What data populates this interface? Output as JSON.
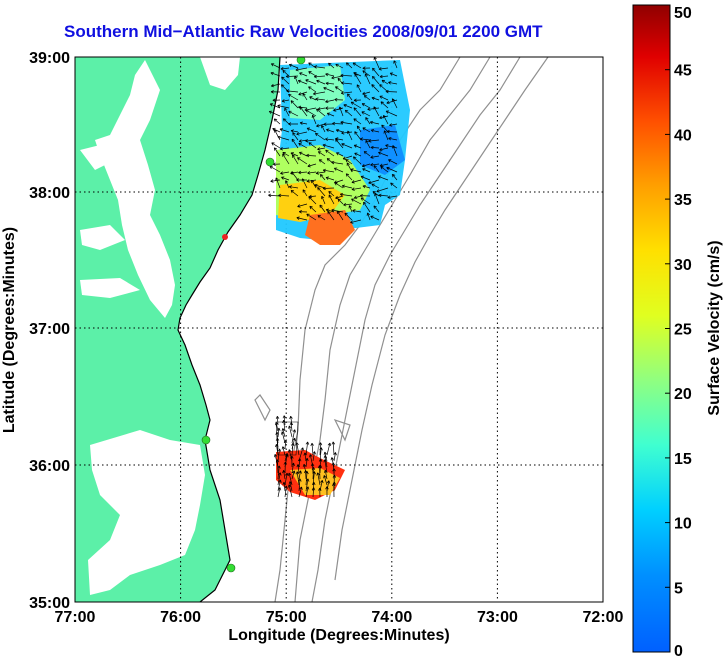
{
  "title": "Southern Mid−Atlantic Raw Velocities 2008/09/01 2200 GMT",
  "map": {
    "x_label": "Longitude (Degrees:Minutes)",
    "y_label": "Latitude (Degrees:Minutes)",
    "x_ticks": [
      "77:00",
      "76:00",
      "75:00",
      "74:00",
      "73:00",
      "72:00"
    ],
    "y_ticks": [
      "39:00",
      "38:00",
      "37:00",
      "36:00",
      "35:00"
    ],
    "land_color": "#5cf0a8",
    "water_color": "#ffffff",
    "bathymetry_color": "#909090",
    "station_color": "#33dd33",
    "station_offline_color": "#ee2222"
  },
  "colorbar": {
    "label": "Surface Velocity (cm/s)",
    "ticks": [
      "0",
      "5",
      "10",
      "15",
      "20",
      "25",
      "30",
      "35",
      "40",
      "45",
      "50"
    ],
    "range": [
      0,
      50
    ]
  }
}
